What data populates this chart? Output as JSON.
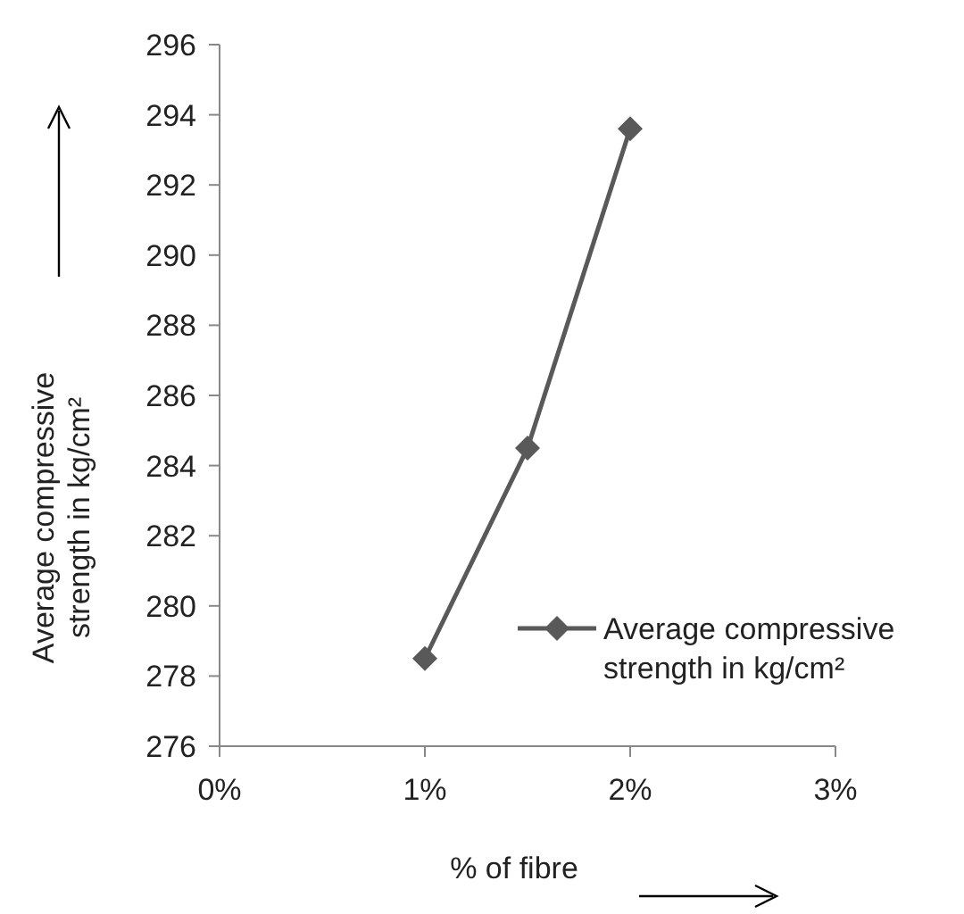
{
  "chart_data": {
    "type": "line",
    "xlabel": "% of fibre",
    "ylabel": "Average compressive strength in kg/cm²",
    "x": [
      1,
      1.5,
      2
    ],
    "series": [
      {
        "name": "Average compressive strength in kg/cm²",
        "color": "#595959",
        "values": [
          278.5,
          284.5,
          293.6
        ]
      }
    ],
    "xlim": [
      0,
      3
    ],
    "xticks": [
      {
        "value": 0,
        "label": "0%"
      },
      {
        "value": 1,
        "label": "1%"
      },
      {
        "value": 2,
        "label": "2%"
      },
      {
        "value": 3,
        "label": "3%"
      }
    ],
    "ylim": [
      276,
      296
    ],
    "yticks": [
      276,
      278,
      280,
      282,
      284,
      286,
      288,
      290,
      292,
      294,
      296
    ],
    "marker": "diamond",
    "legend": "right",
    "grid": false
  }
}
